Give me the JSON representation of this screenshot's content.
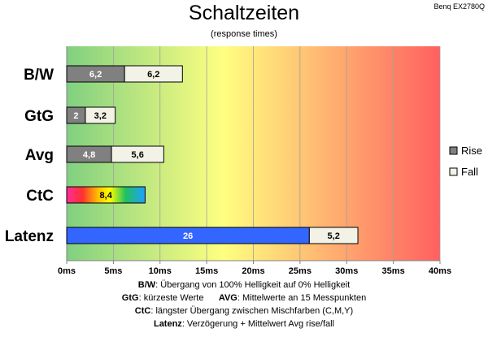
{
  "header": {
    "title": "Schaltzeiten",
    "subtitle": "(response times)",
    "model": "Benq EX2780Q"
  },
  "chart_data": {
    "type": "bar",
    "orientation": "horizontal",
    "stacked": true,
    "categories": [
      "B/W",
      "GtG",
      "Avg",
      "CtC",
      "Latenz"
    ],
    "series": [
      {
        "name": "Rise",
        "color": "#808080",
        "values": [
          6.2,
          2,
          4.8,
          null,
          null
        ]
      },
      {
        "name": "Fall",
        "color": "#f2f2e6",
        "values": [
          6.2,
          3.2,
          5.6,
          null,
          null
        ]
      }
    ],
    "ctc": {
      "value": 8.4,
      "label": "8,4",
      "fill": "rainbow"
    },
    "latency": {
      "delay": 26,
      "delay_label": "26",
      "delay_color": "#3366ff",
      "avg": 5.2,
      "avg_label": "5,2",
      "avg_color": "#f2f2e6"
    },
    "data_labels": {
      "B/W": [
        "6,2",
        "6,2"
      ],
      "GtG": [
        "2",
        "3,2"
      ],
      "Avg": [
        "4,8",
        "5,6"
      ]
    },
    "xaxis": {
      "ticks": [
        0,
        5,
        10,
        15,
        20,
        25,
        30,
        35,
        40
      ],
      "tick_labels": [
        "0ms",
        "5ms",
        "10ms",
        "15ms",
        "20ms",
        "25ms",
        "30ms",
        "35ms",
        "40ms"
      ],
      "xlim": [
        0,
        40
      ]
    },
    "legend": {
      "position": "right",
      "items": [
        "Rise",
        "Fall"
      ]
    },
    "background_gradient": [
      "#80d080",
      "#ffff80",
      "#ff6060"
    ],
    "grid": true
  },
  "footnotes": [
    {
      "key": "B/W",
      "text": ":  Übergang von 100% Helligkeit auf 0% Helligkeit"
    },
    {
      "key": "GtG",
      "text": ": kürzeste  Werte",
      "key2": "AVG",
      "text2": ": Mittelwerte  an 15 Messpunkten"
    },
    {
      "key": "CtC",
      "text": ": längster Übergang  zwischen Mischfarben  (C,M,Y)"
    },
    {
      "key": "Latenz",
      "text": ": Verzögerung  + Mittelwert  Avg rise/fall"
    }
  ]
}
